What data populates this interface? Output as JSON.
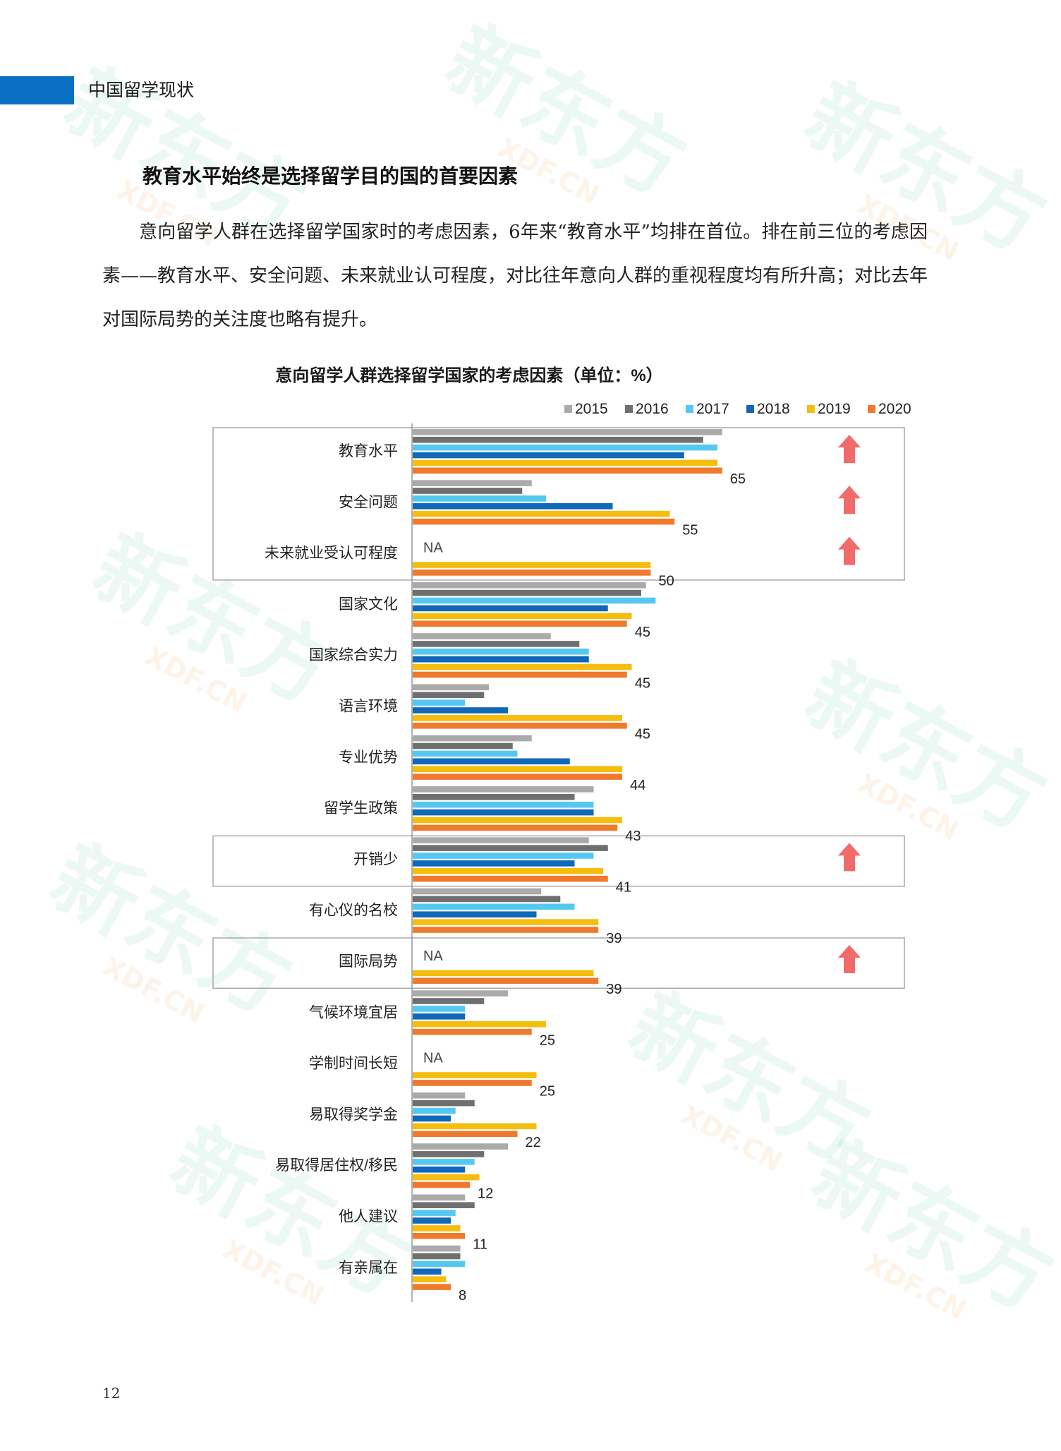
{
  "header": {
    "section": "中国留学现状"
  },
  "section_title": "教育水平始终是选择留学目的国的首要因素",
  "paragraph": "意向留学人群在选择留学国家时的考虑因素，6年来“教育水平”均排在首位。排在前三位的考虑因素——教育水平、安全问题、未来就业认可程度，对比往年意向人群的重视程度均有所升高；对比去年对国际局势的关注度也略有提升。",
  "page_number": "12",
  "watermark": {
    "text": "新东方",
    "sub": "XDF.CN"
  },
  "colors": {
    "header_bar": "#0b6fc4",
    "series": [
      "#aaaaaa",
      "#6f6f6f",
      "#55c8f2",
      "#0f68b8",
      "#f5bd0e",
      "#ef7a2e"
    ],
    "arrow": "#f26b6b",
    "box": "#a7a7a7"
  },
  "chart_data": {
    "type": "bar",
    "orientation": "horizontal",
    "title": "意向留学人群选择留学国家的考虑因素（单位：%）",
    "legend": [
      "2015",
      "2016",
      "2017",
      "2018",
      "2019",
      "2020"
    ],
    "legend_position": "top-right",
    "na_label": "NA",
    "categories": [
      "教育水平",
      "安全问题",
      "未来就业受认可程度",
      "国家文化",
      "国家综合实力",
      "语言环境",
      "专业优势",
      "留学生政策",
      "开销少",
      "有心仪的名校",
      "国际局势",
      "气候环境宜居",
      "学制时间长短",
      "易取得奖学金",
      "易取得居住权/移民",
      "他人建议",
      "有亲属在"
    ],
    "series": [
      {
        "name": "2015",
        "values": [
          65,
          25,
          null,
          49,
          29,
          16,
          25,
          38,
          37,
          27,
          null,
          20,
          null,
          11,
          20,
          11,
          10
        ]
      },
      {
        "name": "2016",
        "values": [
          61,
          23,
          null,
          48,
          35,
          15,
          21,
          34,
          41,
          31,
          null,
          15,
          null,
          13,
          15,
          13,
          10
        ]
      },
      {
        "name": "2017",
        "values": [
          64,
          28,
          null,
          51,
          37,
          11,
          22,
          38,
          38,
          34,
          null,
          11,
          null,
          9,
          13,
          9,
          11
        ]
      },
      {
        "name": "2018",
        "values": [
          57,
          42,
          null,
          41,
          37,
          20,
          33,
          38,
          34,
          26,
          null,
          11,
          null,
          8,
          11,
          8,
          6
        ]
      },
      {
        "name": "2019",
        "values": [
          64,
          54,
          50,
          46,
          46,
          44,
          44,
          44,
          40,
          39,
          38,
          28,
          26,
          26,
          14,
          10,
          7
        ]
      },
      {
        "name": "2020",
        "values": [
          65,
          55,
          50,
          45,
          45,
          45,
          44,
          43,
          41,
          39,
          39,
          25,
          25,
          22,
          12,
          11,
          8
        ]
      }
    ],
    "data_labels": [
      "65",
      "55",
      "50",
      "45",
      "45",
      "45",
      "44",
      "43",
      "41",
      "39",
      "39",
      "25",
      "25",
      "22",
      "12",
      "11",
      "8"
    ],
    "highlighted_with_up_arrow": [
      "教育水平",
      "安全问题",
      "未来就业受认可程度",
      "开销少",
      "国际局势"
    ],
    "xlim": [
      0,
      100
    ]
  }
}
